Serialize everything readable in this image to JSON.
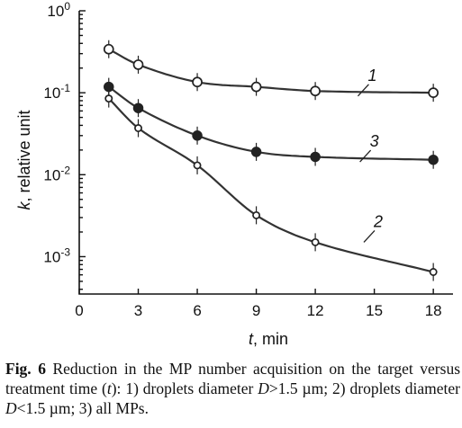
{
  "chart_data": {
    "type": "scatter",
    "xlabel_var": "t",
    "xlabel_unit": ", min",
    "ylabel_var": "k",
    "ylabel_unit": ", relative unit",
    "xlim": [
      0,
      19
    ],
    "ylim": [
      0.00035,
      1.0
    ],
    "yscale": "log",
    "x_ticks": [
      0,
      3,
      6,
      9,
      12,
      15,
      18
    ],
    "y_ticks": [
      {
        "value": 1.0,
        "base": "10",
        "exp": "0"
      },
      {
        "value": 0.1,
        "base": "10",
        "exp": "-1"
      },
      {
        "value": 0.01,
        "base": "10",
        "exp": "-2"
      },
      {
        "value": 0.001,
        "base": "10",
        "exp": "-3"
      }
    ],
    "series": [
      {
        "name": "1",
        "marker": "open-circle",
        "label_at": [
          14.9,
          0.14
        ],
        "x": [
          1.5,
          3,
          6,
          9,
          12,
          18
        ],
        "y": [
          0.34,
          0.22,
          0.135,
          0.118,
          0.105,
          0.1
        ]
      },
      {
        "name": "2",
        "marker": "open-circle-small",
        "label_at": [
          15.2,
          0.0023
        ],
        "x": [
          1.5,
          3,
          6,
          9,
          12,
          18
        ],
        "y": [
          0.085,
          0.037,
          0.013,
          0.0032,
          0.0015,
          0.00065
        ]
      },
      {
        "name": "3",
        "marker": "filled-circle",
        "label_at": [
          15.0,
          0.022
        ],
        "x": [
          1.5,
          3,
          6,
          9,
          12,
          18
        ],
        "y": [
          0.118,
          0.065,
          0.03,
          0.019,
          0.0165,
          0.0152
        ]
      }
    ],
    "grid": false
  },
  "caption": {
    "fig_label": "Fig. 6",
    "part1": " Reduction in the MP number acquisition on the target versus treatment time (",
    "t": "t",
    "part2": "): 1) droplets diameter ",
    "d1": "D",
    "part3": ">1.5 µm; 2) droplets diameter ",
    "d2": "D",
    "part4": "<1.5 µm; 3) all MPs."
  }
}
